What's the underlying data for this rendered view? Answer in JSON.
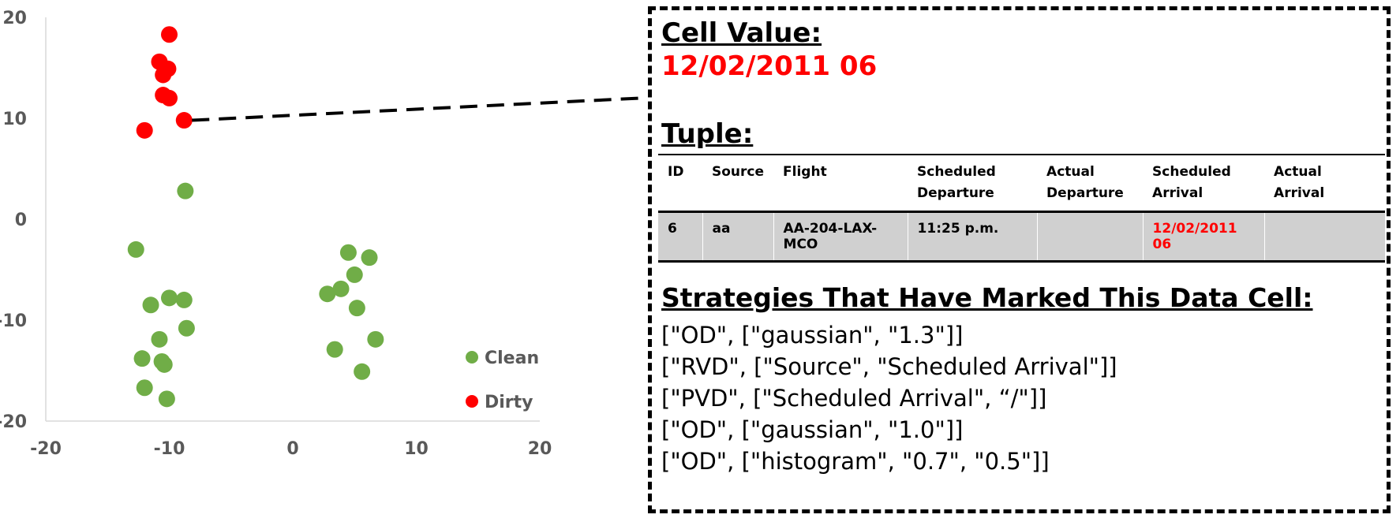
{
  "chart_data": {
    "type": "scatter",
    "title": "",
    "xlabel": "",
    "ylabel": "",
    "xlim": [
      -20,
      20
    ],
    "ylim": [
      -20,
      20
    ],
    "x_ticks": [
      "-20",
      "-10",
      "0",
      "10",
      "20"
    ],
    "y_ticks": [
      "20",
      "10",
      "0",
      "-10",
      "-20"
    ],
    "grid": false,
    "legend_position": "bottom-right",
    "series": [
      {
        "name": "Clean",
        "color": "#70ad47",
        "points": [
          [
            -8.7,
            2.8
          ],
          [
            -12.7,
            -3.0
          ],
          [
            -11.5,
            -8.5
          ],
          [
            -10.0,
            -7.8
          ],
          [
            -8.8,
            -8.0
          ],
          [
            -8.6,
            -10.8
          ],
          [
            -10.8,
            -11.9
          ],
          [
            -12.2,
            -13.8
          ],
          [
            -10.6,
            -14.1
          ],
          [
            -10.4,
            -14.4
          ],
          [
            -12.0,
            -16.7
          ],
          [
            -10.2,
            -17.8
          ],
          [
            4.5,
            -3.3
          ],
          [
            6.2,
            -3.8
          ],
          [
            5.0,
            -5.5
          ],
          [
            2.8,
            -7.4
          ],
          [
            3.9,
            -6.9
          ],
          [
            5.2,
            -8.8
          ],
          [
            6.7,
            -11.9
          ],
          [
            3.4,
            -12.9
          ],
          [
            5.6,
            -15.1
          ]
        ]
      },
      {
        "name": "Dirty",
        "color": "#ff0000",
        "points": [
          [
            -10.0,
            18.3
          ],
          [
            -10.8,
            15.6
          ],
          [
            -10.1,
            14.9
          ],
          [
            -10.5,
            14.3
          ],
          [
            -10.5,
            12.3
          ],
          [
            -10.0,
            12.0
          ],
          [
            -8.8,
            9.8
          ],
          [
            -12.0,
            8.8
          ]
        ]
      }
    ],
    "highlighted_point": [
      -8.8,
      9.8
    ]
  },
  "detail": {
    "cell_value_heading": "Cell Value:",
    "cell_value": "12/02/2011 06",
    "tuple_heading": "Tuple:",
    "columns": [
      {
        "l1": "ID",
        "l2": ""
      },
      {
        "l1": "Source",
        "l2": ""
      },
      {
        "l1": "Flight",
        "l2": ""
      },
      {
        "l1": "Scheduled",
        "l2": "Departure"
      },
      {
        "l1": "Actual",
        "l2": "Departure"
      },
      {
        "l1": "Scheduled",
        "l2": "Arrival"
      },
      {
        "l1": "Actual",
        "l2": "Arrival"
      }
    ],
    "row": [
      "6",
      "aa",
      "AA-204-LAX-MCO",
      "11:25 p.m.",
      "",
      "12/02/2011 06",
      ""
    ],
    "strategies_heading": "Strategies That Have Marked This Data Cell:",
    "strategies": [
      "[\"OD\", [\"gaussian\", \"1.3\"]]",
      "[\"RVD\", [\"Source\", \"Scheduled Arrival\"]]",
      "[\"PVD\", [\"Scheduled Arrival\", “/\"]]",
      "[\"OD\", [\"gaussian\", \"1.0\"]]",
      "[\"OD\", [\"histogram\", \"0.7\", \"0.5\"]]"
    ]
  }
}
